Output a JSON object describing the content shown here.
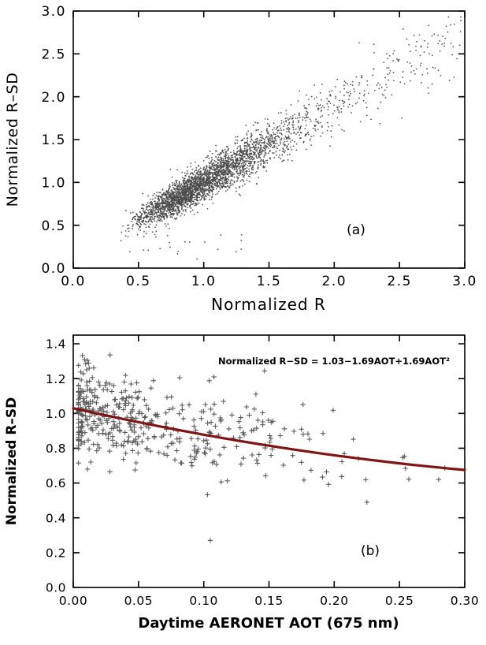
{
  "figure": {
    "background": "#ffffff"
  },
  "chart_data": [
    {
      "type": "scatter",
      "panel_label": "(a)",
      "xlabel": "Normalized R",
      "ylabel": "Normalized R–SD",
      "xlim": [
        0.0,
        3.0
      ],
      "ylim": [
        0.0,
        3.0
      ],
      "xticks": {
        "values": [
          0,
          0.5,
          1,
          1.5,
          2,
          2.5,
          3
        ],
        "labels": [
          "0.0",
          "0.5",
          "1.0",
          "1.5",
          "2.0",
          "2.5",
          "3.0"
        ]
      },
      "yticks": {
        "values": [
          0,
          0.5,
          1,
          1.5,
          2,
          2.5,
          3
        ],
        "labels": [
          "0.0",
          "0.5",
          "1.0",
          "1.5",
          "2.0",
          "2.5",
          "3.0"
        ]
      },
      "marker": "dot",
      "point_color": "#4c4c4c",
      "grid": false,
      "description": "Dense diagonal cloud of ~3400 small dots following y ~ 0.12 + 0.88x, densest near (1.0, 1.0), sparse tail extending to (3.0, 2.9), a few low outliers near x 0.4-1.3 at y 0.1-0.4",
      "generator": {
        "seed": 11,
        "n": 3400,
        "x_log_mu": -0.02,
        "x_log_sigma": 0.3,
        "tail_fraction": 0.1,
        "tail_min": 1.25,
        "tail_max": 3.0,
        "tail_power": 1.4,
        "x_min": 0.32,
        "x_max": 2.97,
        "trend_intercept": 0.12,
        "trend_slope": 0.88,
        "noise_base": 0.055,
        "noise_scale": 0.055,
        "outliers": {
          "n": 22,
          "x_min": 0.38,
          "x_max": 1.3,
          "y_min": 0.1,
          "y_max": 0.4
        }
      }
    },
    {
      "type": "scatter",
      "panel_label": "(b)",
      "xlabel": "Daytime AERONET AOT (675 nm)",
      "ylabel": "Normalized R–SD",
      "xlim": [
        0.0,
        0.3
      ],
      "ylim": [
        0.0,
        1.45
      ],
      "xticks": {
        "values": [
          0,
          0.05,
          0.1,
          0.15,
          0.2,
          0.25,
          0.3
        ],
        "labels": [
          "0.00",
          "0.05",
          "0.10",
          "0.15",
          "0.20",
          "0.25",
          "0.30"
        ]
      },
      "yticks": {
        "values": [
          0,
          0.2,
          0.4,
          0.6,
          0.8,
          1.0,
          1.2,
          1.4
        ],
        "labels": [
          "0.0",
          "0.2",
          "0.4",
          "0.6",
          "0.8",
          "1.0",
          "1.2",
          "1.4"
        ]
      },
      "marker": "plus",
      "point_color": "#5c5c5c",
      "grid": false,
      "fit": {
        "equation_label": "Normalized R−SD = 1.03−1.69AOT+1.69AOT²",
        "coefficients": [
          1.03,
          -1.69,
          1.69
        ],
        "color": "#7e1416",
        "width": 3.2
      },
      "description": "~420 plus markers, dense for AOT < 0.12 spanning y 0.7-1.45, thinning toward 0.30; dark red quadratic fit declining from 1.03 at AOT 0 to ~0.67 at AOT 0.30; isolated low point near (0.105, 0.27)",
      "generator": {
        "seed": 23,
        "n": 420,
        "x_exp_scale": 0.062,
        "x_min": 0.004,
        "x_max": 0.295,
        "noise_sd": 0.125,
        "y_min": 0.25,
        "y_max": 1.44,
        "extra_points": [
          [
            0.105,
            0.27
          ],
          [
            0.225,
            0.49
          ],
          [
            0.28,
            0.62
          ]
        ]
      }
    }
  ]
}
